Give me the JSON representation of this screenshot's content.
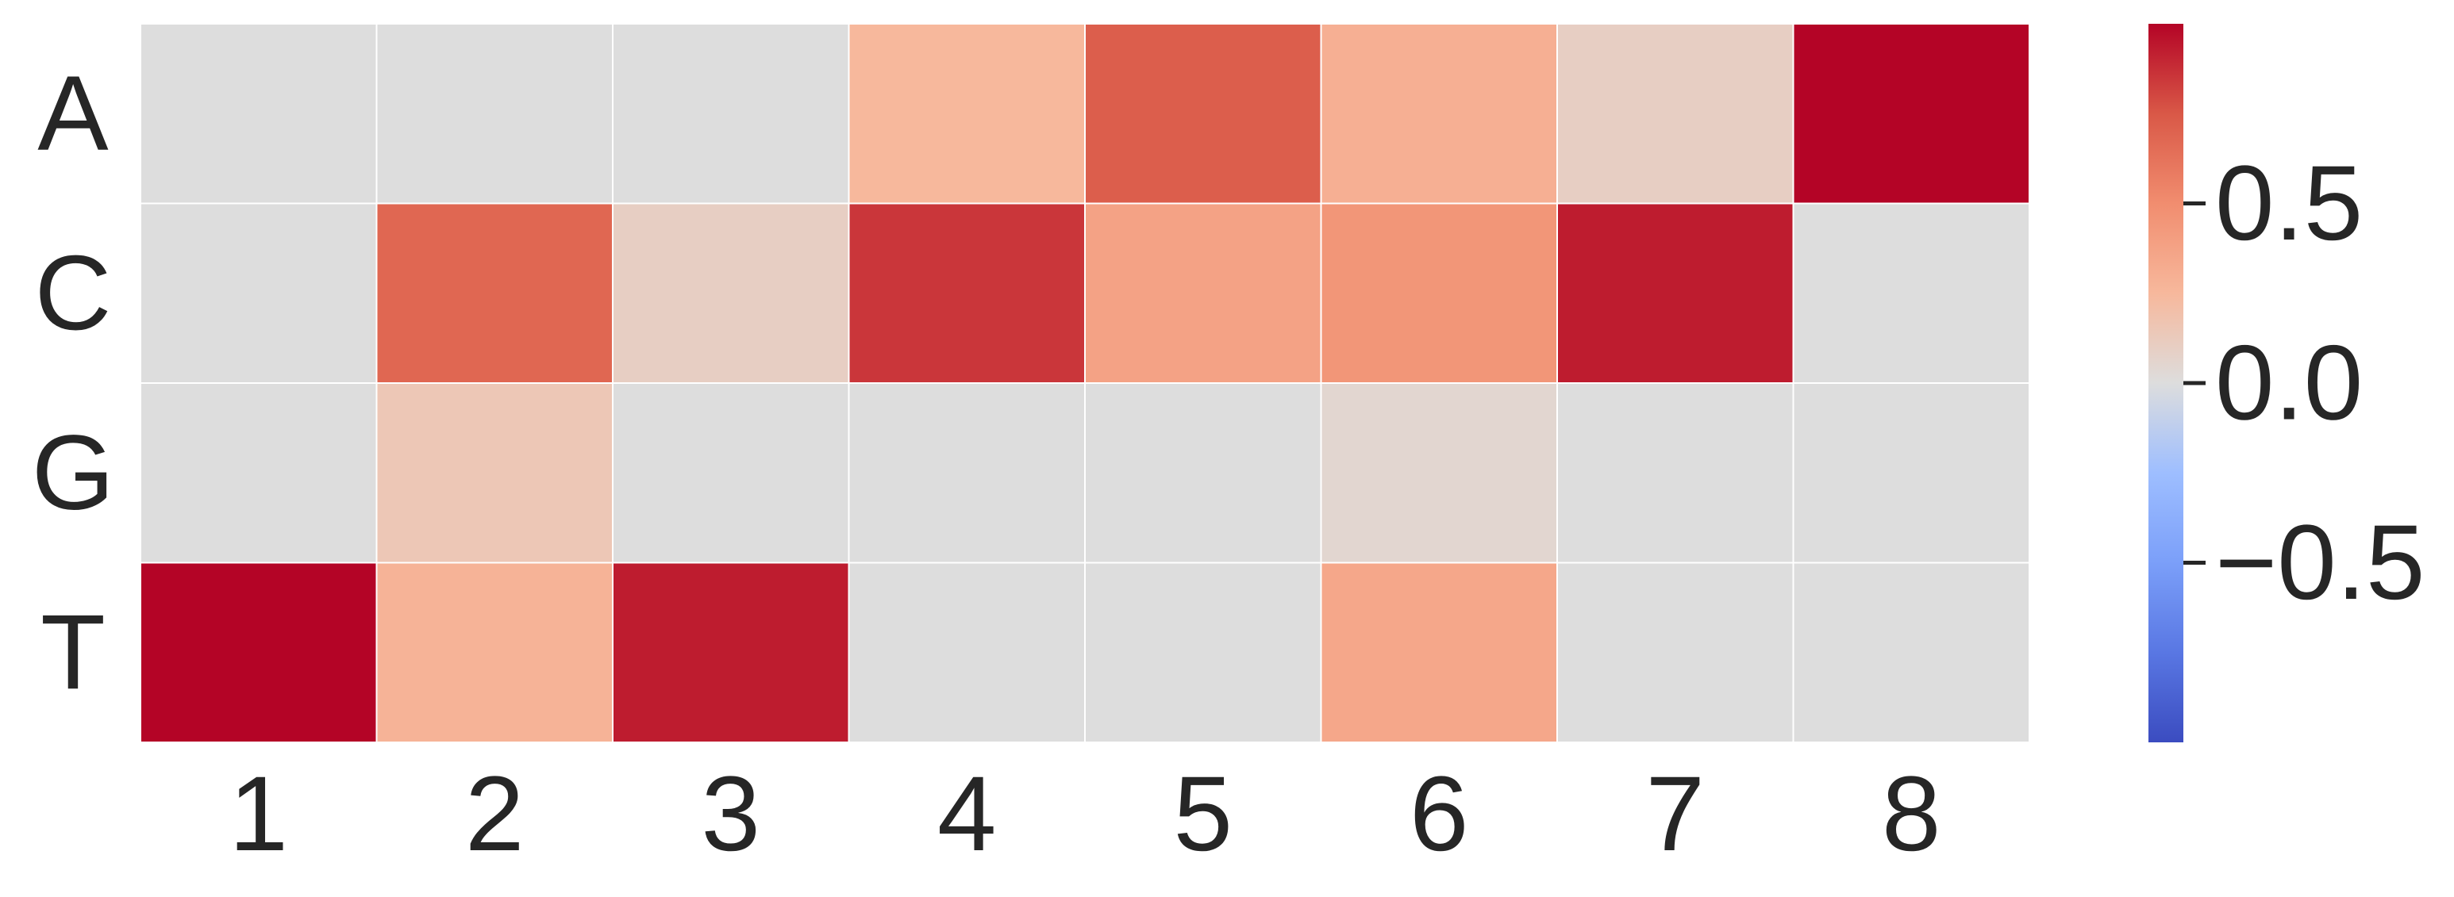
{
  "chart_data": {
    "type": "heatmap",
    "title": "",
    "xlabel": "",
    "ylabel": "",
    "x_categories": [
      "1",
      "2",
      "3",
      "4",
      "5",
      "6",
      "7",
      "8"
    ],
    "y_categories": [
      "A",
      "C",
      "G",
      "T"
    ],
    "values": [
      [
        0.0,
        0.0,
        0.0,
        0.25,
        0.72,
        0.3,
        0.1,
        1.0
      ],
      [
        0.0,
        0.68,
        0.1,
        0.85,
        0.38,
        0.45,
        0.93,
        0.0
      ],
      [
        0.0,
        0.15,
        0.0,
        0.0,
        0.0,
        0.05,
        0.0,
        0.0
      ],
      [
        1.0,
        0.28,
        0.93,
        0.0,
        0.0,
        0.35,
        0.0,
        0.0
      ]
    ],
    "colorbar": {
      "colormap": "coolwarm",
      "range": [
        -1.0,
        1.0
      ],
      "ticks": [
        {
          "value": 0.5,
          "label": "0.5"
        },
        {
          "value": 0.0,
          "label": "0.0"
        },
        {
          "value": -0.5,
          "label": "−0.5"
        }
      ]
    },
    "grid": true,
    "cell_border_color": "#ffffff",
    "colors": {
      "low": "#3b4cc0",
      "mid": "#dddddd",
      "high": "#b40426",
      "text": "#262626"
    }
  }
}
